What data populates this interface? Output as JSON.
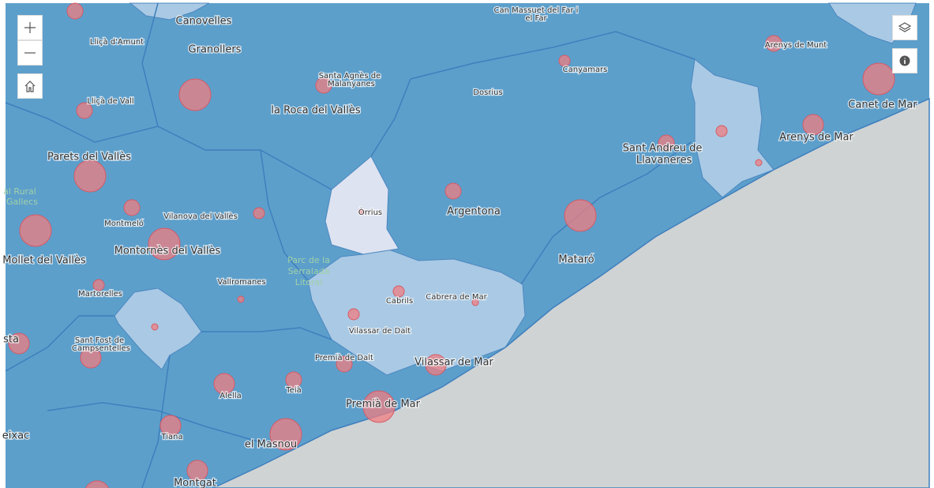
{
  "map": {
    "labels": [
      "Canovelles",
      "Lliçà d'Amunt",
      "Granollers",
      "Santa Agnès de",
      "Malanyanes",
      "Can Massuet del Far i",
      "el Far",
      "Canyamars",
      "Dosrius",
      "Arenys de Munt",
      "Canet de Mar",
      "Lliçà de Vall",
      "la Roca del Vallès",
      "Sant Andreu de",
      "Llavaneres",
      "Arenys de Mar",
      "Parets del Vallès",
      "al Rural",
      "Gallecs",
      "Òrrius",
      "Argentona",
      "Montmeló",
      "Vilanova del Vallès",
      "Montornès del Vallès",
      "Mollet del Vallès",
      "Parc de la",
      "Serralada",
      "Litoral",
      "Mataró",
      "Vallromanes",
      "Martorelles",
      "Cabrils",
      "Cabrera de Mar",
      "Vilassar de Dalt",
      "Sant Fost de",
      "Campsentelles",
      "sta",
      "Premià de Dalt",
      "Vilassar de Mar",
      "Alella",
      "Teià",
      "Premià de Mar",
      "Tiana",
      "eixac",
      "el Masnou",
      "Montgat"
    ]
  }
}
